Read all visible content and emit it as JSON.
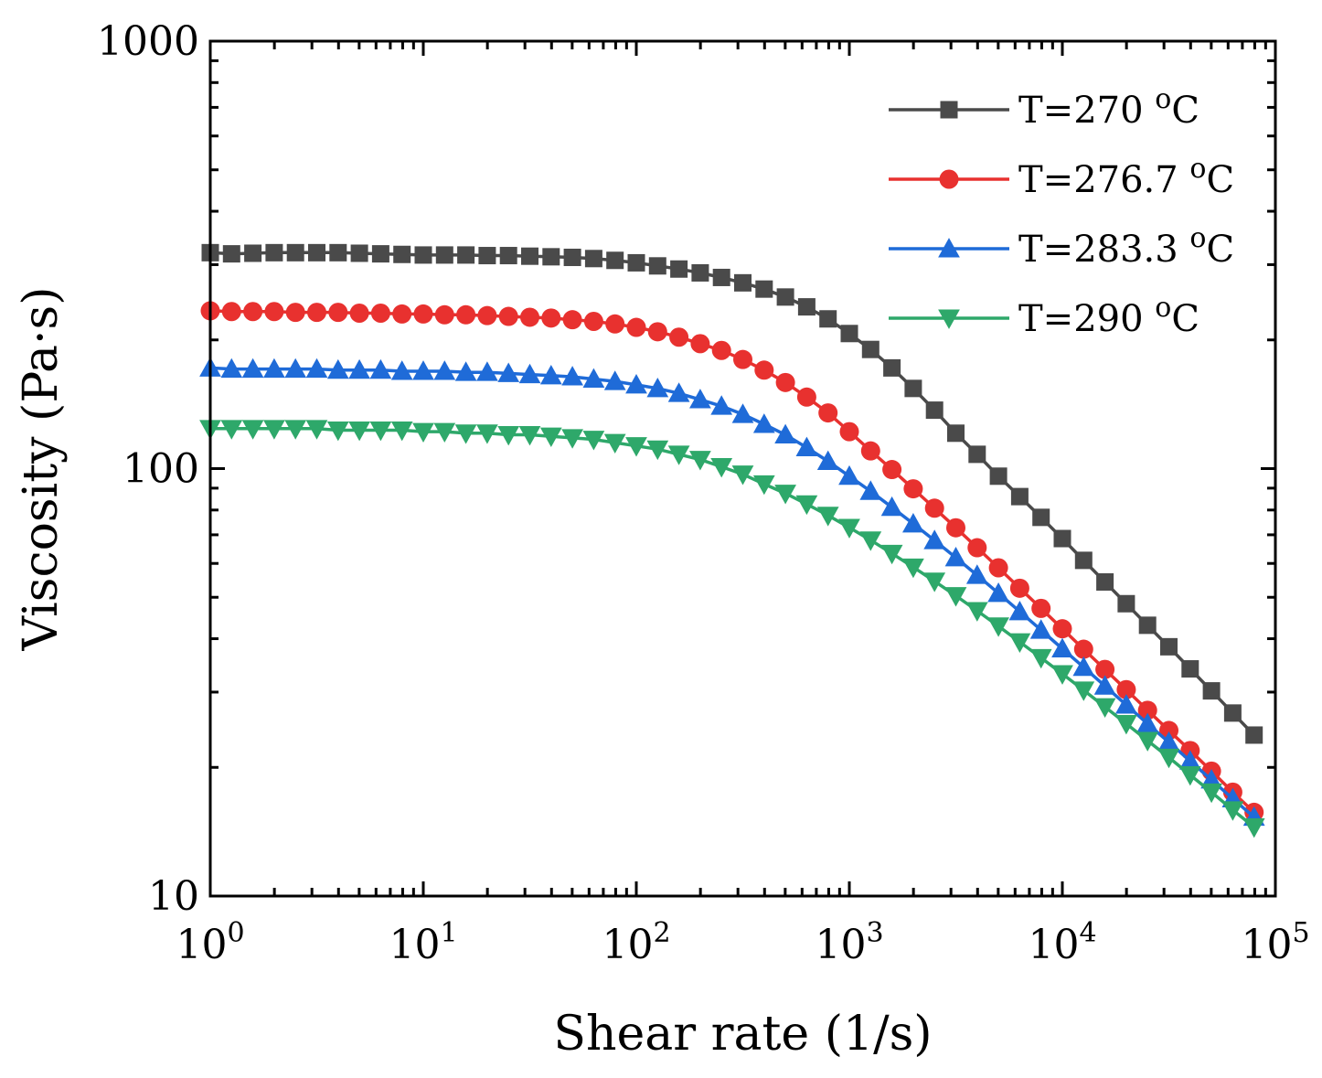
{
  "chart_data": {
    "type": "line",
    "title": "",
    "xlabel": "Shear rate (1/s)",
    "ylabel": "Viscosity (Pa·s)",
    "xscale": "log",
    "yscale": "log",
    "xlim": [
      1,
      100000
    ],
    "ylim": [
      10,
      1000
    ],
    "x_tick_labels": [
      {
        "base": "10",
        "exp": "0"
      },
      {
        "base": "10",
        "exp": "1"
      },
      {
        "base": "10",
        "exp": "2"
      },
      {
        "base": "10",
        "exp": "3"
      },
      {
        "base": "10",
        "exp": "4"
      },
      {
        "base": "10",
        "exp": "5"
      }
    ],
    "y_tick_labels": [
      "10",
      "100",
      "1000"
    ],
    "grid": false,
    "legend_position": "top-right",
    "x_points": {
      "start": 1,
      "ratio": 1.258925,
      "count": 50
    },
    "series": [
      {
        "name": "T=270 °C",
        "label_prefix": "T=270 ",
        "label_deg": "o",
        "label_unit": "C",
        "color": "#4a4a4a",
        "marker": "square",
        "values": [
          320,
          318,
          319,
          320,
          320,
          320,
          320,
          319,
          318,
          317,
          316,
          316,
          316,
          315,
          315,
          314,
          313,
          312,
          310,
          307,
          303,
          298,
          293,
          287,
          280,
          272,
          263,
          252,
          239,
          224,
          207,
          190,
          172,
          154,
          137,
          121,
          108,
          96,
          86,
          76.9,
          68.6,
          61.0,
          54.3,
          48.3,
          43.0,
          38.3,
          34.0,
          30.2,
          26.8,
          23.8
        ]
      },
      {
        "name": "T=276.7 °C",
        "label_prefix": "T=276.7 ",
        "label_deg": "o",
        "label_unit": "C",
        "color": "#e8312f",
        "marker": "circle",
        "values": [
          234,
          233,
          233,
          233,
          232,
          232,
          232,
          231,
          231,
          230,
          230,
          229,
          229,
          228,
          227,
          226,
          225,
          223,
          221,
          218,
          214,
          209,
          203,
          196,
          189,
          180,
          170,
          159,
          147,
          135,
          122,
          110,
          99.5,
          89.7,
          80.8,
          72.7,
          65.3,
          58.6,
          52.5,
          47.1,
          42.2,
          37.8,
          33.9,
          30.4,
          27.2,
          24.4,
          21.9,
          19.6,
          17.5,
          15.7
        ]
      },
      {
        "name": "T=283.3 °C",
        "label_prefix": "T=283.3 ",
        "label_deg": "o",
        "label_unit": "C",
        "color": "#1f6bd8",
        "marker": "triangle-up",
        "values": [
          172,
          171,
          171,
          171,
          171,
          171,
          170,
          170,
          170,
          169,
          169,
          169,
          168,
          168,
          167,
          166,
          165,
          164,
          162,
          160,
          157,
          154,
          150,
          145,
          140,
          134,
          127,
          120,
          112,
          104,
          96,
          88.5,
          81.2,
          74.3,
          67.9,
          61.9,
          56.3,
          51.1,
          46.3,
          41.9,
          37.9,
          34.3,
          31.0,
          28.0,
          25.3,
          22.9,
          20.7,
          18.7,
          16.9,
          15.3
        ]
      },
      {
        "name": "T=290 °C",
        "label_prefix": "T=290 ",
        "label_deg": "o",
        "label_unit": "C",
        "color": "#2ea86a",
        "marker": "triangle-down",
        "values": [
          124,
          124,
          124,
          124,
          124,
          124,
          123,
          123,
          123,
          123,
          122,
          122,
          121,
          121,
          120,
          120,
          119,
          118,
          117,
          115,
          113,
          111,
          108,
          105,
          101,
          97,
          92,
          87.5,
          82.6,
          77.7,
          72.8,
          68.0,
          63.3,
          58.8,
          54.5,
          50.4,
          46.5,
          42.8,
          39.3,
          36.1,
          33.1,
          30.3,
          27.7,
          25.3,
          23.1,
          21.1,
          19.2,
          17.5,
          15.9,
          14.5
        ]
      }
    ]
  }
}
